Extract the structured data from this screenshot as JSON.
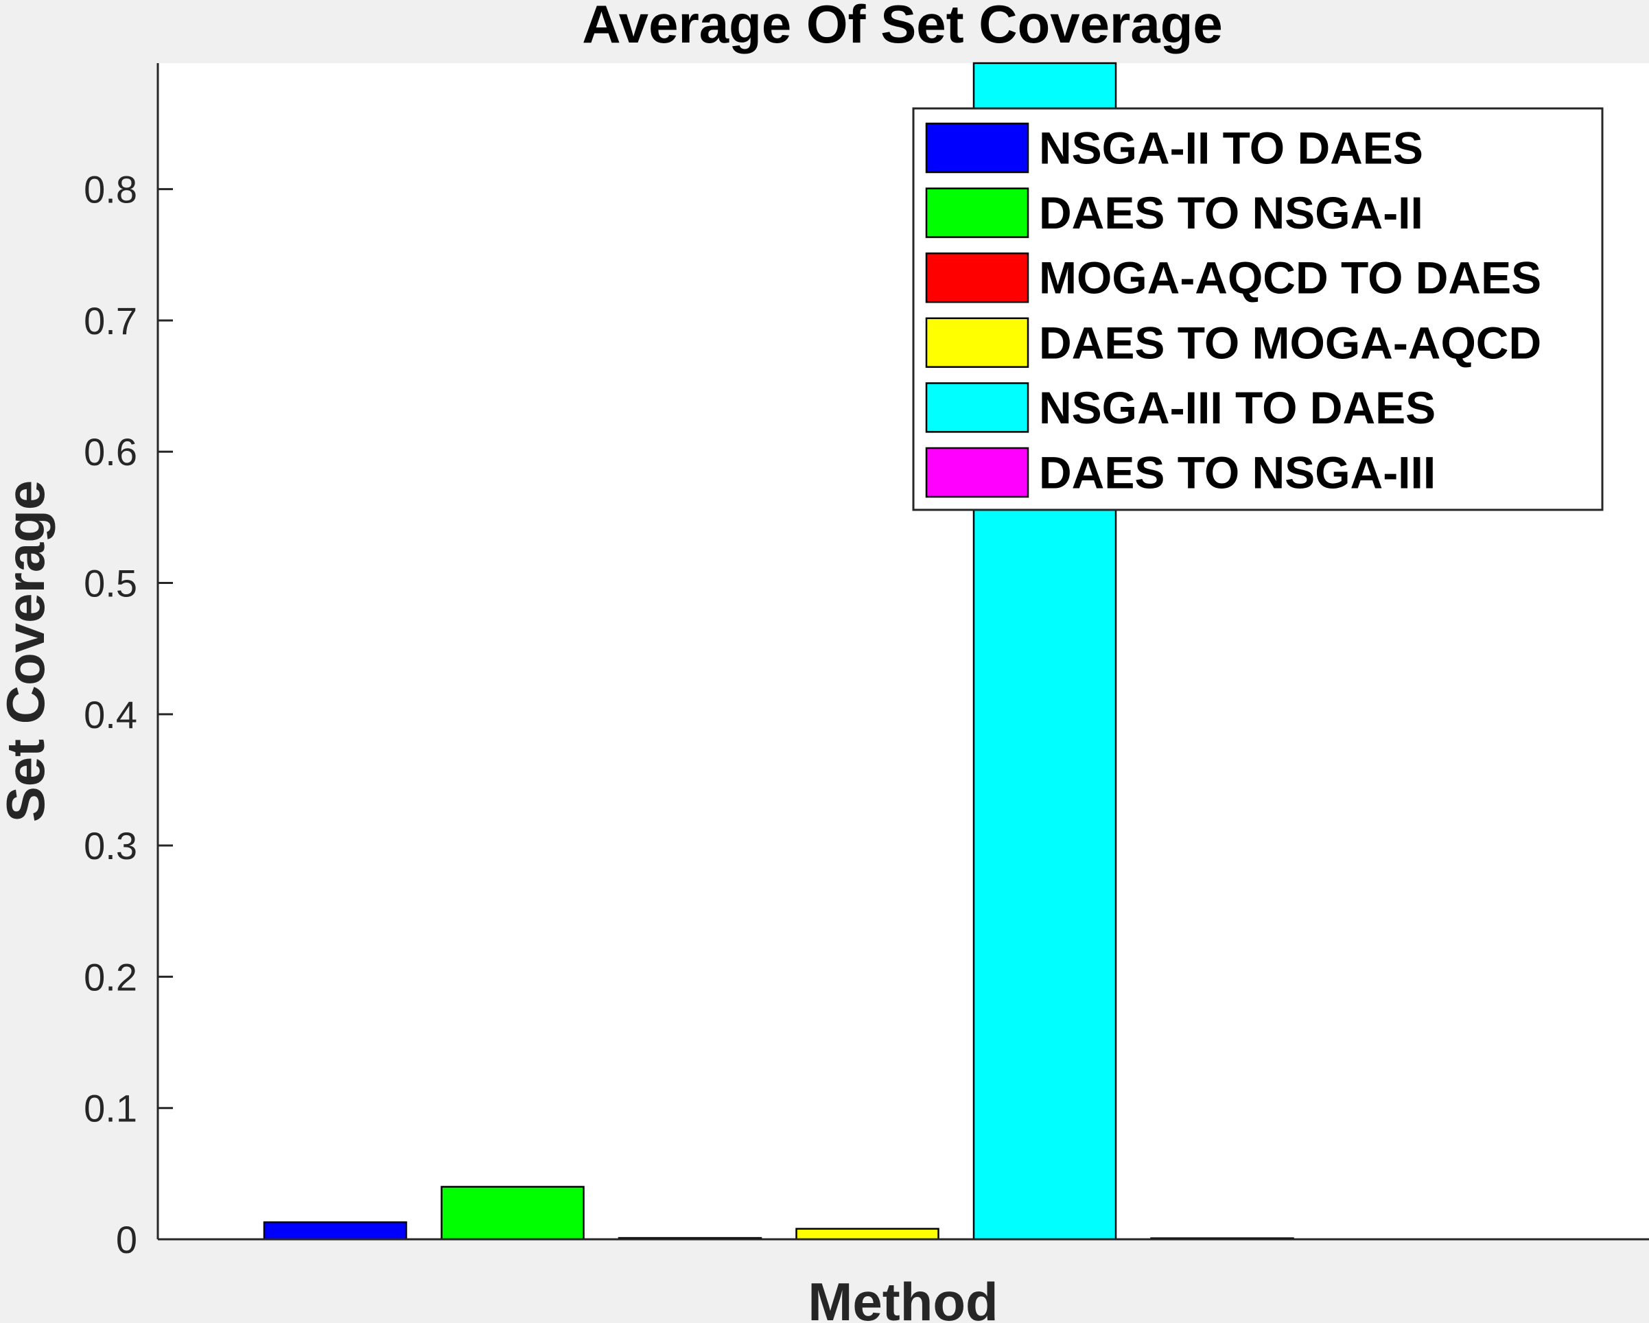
{
  "chart_data": {
    "type": "bar",
    "title": "Average Of Set Coverage",
    "xlabel": "Method",
    "ylabel": "Set Coverage",
    "ylim": [
      0,
      0.896
    ],
    "yticks": [
      0,
      0.1,
      0.2,
      0.3,
      0.4,
      0.5,
      0.6,
      0.7,
      0.8
    ],
    "ytick_labels": [
      "0",
      "0.1",
      "0.2",
      "0.3",
      "0.4",
      "0.5",
      "0.6",
      "0.7",
      "0.8"
    ],
    "grid": false,
    "legend_position": "top-right",
    "series": [
      {
        "name": "NSGA-II TO DAES",
        "value": 0.013,
        "color": "#0000ff"
      },
      {
        "name": "DAES TO NSGA-II",
        "value": 0.04,
        "color": "#00ff00"
      },
      {
        "name": "MOGA-AQCD TO DAES",
        "value": 0.001,
        "color": "#ff0000"
      },
      {
        "name": "DAES TO MOGA-AQCD",
        "value": 0.008,
        "color": "#ffff00"
      },
      {
        "name": "NSGA-III TO DAES",
        "value": 0.896,
        "color": "#00ffff"
      },
      {
        "name": "DAES TO NSGA-III",
        "value": 0.0005,
        "color": "#ff00ff"
      }
    ]
  }
}
